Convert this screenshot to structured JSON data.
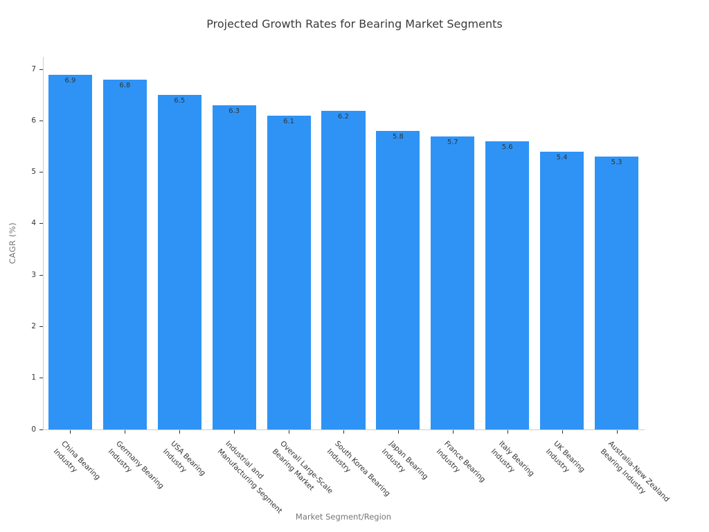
{
  "title": "Projected Growth Rates for Bearing Market Segments",
  "chart_data": {
    "type": "bar",
    "title": "Projected Growth Rates for Bearing Market Segments",
    "xlabel": "Market Segment/Region",
    "ylabel": "CAGR (%)",
    "categories": [
      "China Bearing Industry",
      "Germany Bearing Industry",
      "USA Bearing Industry",
      "Industrial and Manufacturing Segment",
      "Overall Large-Scale Bearing Market",
      "South Korea Bearing Industry",
      "Japan Bearing Industry",
      "France Bearing Industry",
      "Italy Bearing Industry",
      "UK Bearing Industry",
      "Australia-New Zealand Bearing Industry"
    ],
    "category_labels_wrapped": [
      [
        "China Bearing",
        "Industry"
      ],
      [
        "Germany Bearing",
        "Industry"
      ],
      [
        "USA Bearing",
        "Industry"
      ],
      [
        "Industrial and",
        "Manufacturing Segment"
      ],
      [
        "Overall Large-Scale",
        "Bearing Market"
      ],
      [
        "South Korea Bearing",
        "Industry"
      ],
      [
        "Japan Bearing",
        "Industry"
      ],
      [
        "France Bearing",
        "Industry"
      ],
      [
        "Italy Bearing",
        "Industry"
      ],
      [
        "UK Bearing",
        "Industry"
      ],
      [
        "Australia-New Zealand",
        "Bearing Industry"
      ]
    ],
    "values": [
      6.9,
      6.8,
      6.5,
      6.3,
      6.1,
      6.2,
      5.8,
      5.7,
      5.6,
      5.4,
      5.3
    ],
    "bar_labels": [
      "6.9",
      "6.8",
      "6.5",
      "6.3",
      "6.1",
      "6.2",
      "5.8",
      "5.7",
      "5.6",
      "5.4",
      "5.3"
    ],
    "ylim": [
      0,
      7.245
    ],
    "yticks": [
      "0",
      "1",
      "2",
      "3",
      "4",
      "5",
      "6",
      "7"
    ],
    "grid": false,
    "legend": null,
    "bar_color": "#2e93f5"
  },
  "colors": {
    "bar": "#2e93f5",
    "spine": "#cbcbcb",
    "tick_mark": "#333333",
    "tick_label": "#333333",
    "axis_label": "#757575",
    "title": "#3a3a3a"
  }
}
